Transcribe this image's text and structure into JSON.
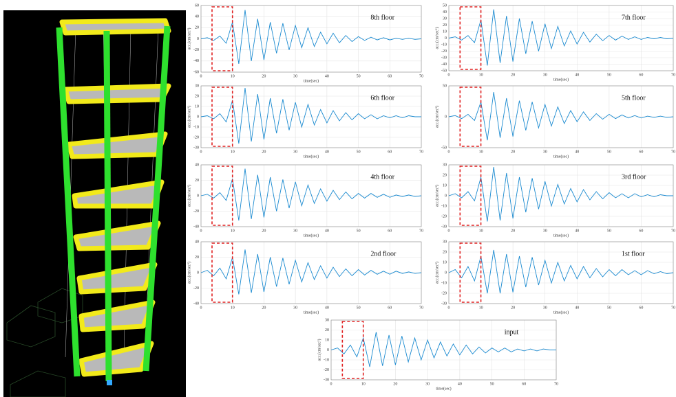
{
  "chart_data": [
    {
      "type": "line",
      "title": "8th floor",
      "xlabel": "time(sec)",
      "ylabel": "acc.(cm/sec²)",
      "color": "#1a8ad0",
      "x": [
        0,
        2,
        4,
        6,
        8,
        10,
        12,
        14,
        16,
        18,
        20,
        22,
        24,
        26,
        28,
        30,
        32,
        34,
        36,
        38,
        40,
        42,
        44,
        46,
        48,
        50,
        52,
        54,
        56,
        58,
        60,
        62,
        64,
        66,
        68,
        70
      ],
      "values": [
        0,
        2,
        -3,
        5,
        -8,
        30,
        -45,
        52,
        -40,
        36,
        -38,
        30,
        -26,
        28,
        -20,
        24,
        -16,
        20,
        -14,
        12,
        -9,
        10,
        -7,
        6,
        -5,
        4,
        -3,
        3,
        -2,
        2,
        -2,
        1,
        -1,
        1,
        -1,
        0
      ],
      "xlim": [
        0,
        70
      ],
      "xticks": [
        0,
        10,
        20,
        30,
        40,
        50,
        60,
        70
      ],
      "ylim": [
        -60,
        60
      ],
      "yticks": [
        -60,
        -40,
        -20,
        0,
        20,
        40,
        60
      ],
      "highlight_xlim": [
        3.5,
        10
      ],
      "grid": true
    },
    {
      "type": "line",
      "title": "7th floor",
      "xlabel": "time(sec)",
      "ylabel": "acc.(cm/sec²)",
      "color": "#1a8ad0",
      "x": [
        0,
        2,
        4,
        6,
        8,
        10,
        12,
        14,
        16,
        18,
        20,
        22,
        24,
        26,
        28,
        30,
        32,
        34,
        36,
        38,
        40,
        42,
        44,
        46,
        48,
        50,
        52,
        54,
        56,
        58,
        60,
        62,
        64,
        66,
        68,
        70
      ],
      "values": [
        0,
        2,
        -3,
        4,
        -7,
        28,
        -42,
        44,
        -38,
        34,
        -36,
        30,
        -24,
        26,
        -20,
        22,
        -16,
        18,
        -12,
        11,
        -9,
        9,
        -6,
        6,
        -4,
        4,
        -3,
        3,
        -2,
        2,
        -2,
        1,
        -1,
        1,
        -1,
        0
      ],
      "xlim": [
        0,
        70
      ],
      "xticks": [
        0,
        10,
        20,
        30,
        40,
        50,
        60,
        70
      ],
      "ylim": [
        -50,
        50
      ],
      "yticks": [
        -50,
        -40,
        -30,
        -20,
        -10,
        0,
        10,
        20,
        30,
        40,
        50
      ],
      "highlight_xlim": [
        3.5,
        10
      ],
      "grid": true
    },
    {
      "type": "line",
      "title": "6th floor",
      "xlabel": "time(sec)",
      "ylabel": "acc.(cm/sec²)",
      "color": "#1a8ad0",
      "x": [
        0,
        2,
        4,
        6,
        8,
        10,
        12,
        14,
        16,
        18,
        20,
        22,
        24,
        26,
        28,
        30,
        32,
        34,
        36,
        38,
        40,
        42,
        44,
        46,
        48,
        50,
        52,
        54,
        56,
        58,
        60,
        62,
        64,
        66,
        68,
        70
      ],
      "values": [
        0,
        1,
        -2,
        3,
        -5,
        16,
        -26,
        28,
        -24,
        22,
        -22,
        18,
        -16,
        17,
        -13,
        14,
        -10,
        12,
        -8,
        7,
        -6,
        6,
        -4,
        4,
        -3,
        3,
        -2,
        2,
        -2,
        1,
        -1,
        1,
        -1,
        1,
        0,
        0
      ],
      "xlim": [
        0,
        70
      ],
      "xticks": [
        0,
        10,
        20,
        30,
        40,
        50,
        60,
        70
      ],
      "ylim": [
        -30,
        30
      ],
      "yticks": [
        -30,
        -20,
        -10,
        0,
        10,
        20,
        30
      ],
      "highlight_xlim": [
        3.5,
        10
      ],
      "grid": true
    },
    {
      "type": "line",
      "title": "5th floor",
      "xlabel": "time(sec)",
      "ylabel": "acc.(cm/sec²)",
      "color": "#1a8ad0",
      "x": [
        0,
        2,
        4,
        6,
        8,
        10,
        12,
        14,
        16,
        18,
        20,
        22,
        24,
        26,
        28,
        30,
        32,
        34,
        36,
        38,
        40,
        42,
        44,
        46,
        48,
        50,
        52,
        54,
        56,
        58,
        60,
        62,
        64,
        66,
        68,
        70
      ],
      "values": [
        0,
        2,
        -3,
        4,
        -6,
        24,
        -38,
        40,
        -34,
        30,
        -32,
        26,
        -22,
        24,
        -18,
        20,
        -15,
        16,
        -11,
        10,
        -8,
        8,
        -6,
        5,
        -4,
        4,
        -3,
        3,
        -2,
        2,
        -2,
        1,
        -1,
        1,
        -1,
        0
      ],
      "xlim": [
        0,
        70
      ],
      "xticks": [
        0,
        10,
        20,
        30,
        40,
        50,
        60,
        70
      ],
      "ylim": [
        -50,
        50
      ],
      "yticks": [
        -50,
        0,
        50
      ],
      "highlight_xlim": [
        3.5,
        10
      ],
      "grid": true
    },
    {
      "type": "line",
      "title": "4th floor",
      "xlabel": "time(sec)",
      "ylabel": "acc.(cm/sec²)",
      "color": "#1a8ad0",
      "x": [
        0,
        2,
        4,
        6,
        8,
        10,
        12,
        14,
        16,
        18,
        20,
        22,
        24,
        26,
        28,
        30,
        32,
        34,
        36,
        38,
        40,
        42,
        44,
        46,
        48,
        50,
        52,
        54,
        56,
        58,
        60,
        62,
        64,
        66,
        68,
        70
      ],
      "values": [
        0,
        2,
        -3,
        4,
        -6,
        22,
        -32,
        35,
        -30,
        27,
        -28,
        24,
        -20,
        21,
        -16,
        18,
        -13,
        14,
        -10,
        9,
        -7,
        7,
        -5,
        5,
        -4,
        3,
        -3,
        3,
        -2,
        2,
        -2,
        1,
        -1,
        1,
        -1,
        0
      ],
      "xlim": [
        0,
        70
      ],
      "xticks": [
        0,
        10,
        20,
        30,
        40,
        50,
        60,
        70
      ],
      "ylim": [
        -40,
        40
      ],
      "yticks": [
        -40,
        -20,
        0,
        20,
        40
      ],
      "highlight_xlim": [
        3.5,
        10
      ],
      "grid": true
    },
    {
      "type": "line",
      "title": "3rd floor",
      "xlabel": "time(sec)",
      "ylabel": "acc.(cm/sec²)",
      "color": "#1a8ad0",
      "x": [
        0,
        2,
        4,
        6,
        8,
        10,
        12,
        14,
        16,
        18,
        20,
        22,
        24,
        26,
        28,
        30,
        32,
        34,
        36,
        38,
        40,
        42,
        44,
        46,
        48,
        50,
        52,
        54,
        56,
        58,
        60,
        62,
        64,
        66,
        68,
        70
      ],
      "values": [
        0,
        2,
        -2,
        4,
        -5,
        18,
        -25,
        28,
        -24,
        22,
        -22,
        18,
        -16,
        17,
        -13,
        14,
        -10,
        11,
        -8,
        7,
        -6,
        6,
        -4,
        4,
        -3,
        3,
        -2,
        2,
        -2,
        2,
        -1,
        1,
        -1,
        1,
        0,
        0
      ],
      "xlim": [
        0,
        70
      ],
      "xticks": [
        0,
        10,
        20,
        30,
        40,
        50,
        60,
        70
      ],
      "ylim": [
        -30,
        30
      ],
      "yticks": [
        -30,
        -20,
        -10,
        0,
        10,
        20,
        30
      ],
      "highlight_xlim": [
        3.5,
        10
      ],
      "grid": true
    },
    {
      "type": "line",
      "title": "2nd floor",
      "xlabel": "time(sec)",
      "ylabel": "acc.(cm/sec²)",
      "color": "#1a8ad0",
      "x": [
        0,
        2,
        4,
        6,
        8,
        10,
        12,
        14,
        16,
        18,
        20,
        22,
        24,
        26,
        28,
        30,
        32,
        34,
        36,
        38,
        40,
        42,
        44,
        46,
        48,
        50,
        52,
        54,
        56,
        58,
        60,
        62,
        64,
        66,
        68,
        70
      ],
      "values": [
        0,
        3,
        -4,
        6,
        -8,
        20,
        -28,
        30,
        -26,
        24,
        -25,
        20,
        -18,
        19,
        -15,
        16,
        -12,
        13,
        -9,
        9,
        -7,
        7,
        -5,
        5,
        -4,
        4,
        -3,
        3,
        -2,
        2,
        -2,
        2,
        -1,
        1,
        -1,
        0
      ],
      "xlim": [
        0,
        70
      ],
      "xticks": [
        0,
        10,
        20,
        30,
        40,
        50,
        60,
        70
      ],
      "ylim": [
        -40,
        40
      ],
      "yticks": [
        -40,
        -20,
        0,
        20,
        40
      ],
      "highlight_xlim": [
        3.5,
        10
      ],
      "grid": true
    },
    {
      "type": "line",
      "title": "1st floor",
      "xlabel": "time(sec)",
      "ylabel": "acc.(cm/sec²)",
      "color": "#1a8ad0",
      "x": [
        0,
        2,
        4,
        6,
        8,
        10,
        12,
        14,
        16,
        18,
        20,
        22,
        24,
        26,
        28,
        30,
        32,
        34,
        36,
        38,
        40,
        42,
        44,
        46,
        48,
        50,
        52,
        54,
        56,
        58,
        60,
        62,
        64,
        66,
        68,
        70
      ],
      "values": [
        0,
        3,
        -5,
        6,
        -8,
        16,
        -20,
        22,
        -20,
        18,
        -19,
        16,
        -14,
        15,
        -12,
        12,
        -10,
        10,
        -8,
        7,
        -6,
        6,
        -5,
        4,
        -4,
        3,
        -3,
        3,
        -2,
        2,
        -2,
        2,
        -1,
        1,
        -1,
        0
      ],
      "xlim": [
        0,
        70
      ],
      "xticks": [
        0,
        10,
        20,
        30,
        40,
        50,
        60,
        70
      ],
      "ylim": [
        -30,
        30
      ],
      "yticks": [
        -30,
        -20,
        -10,
        0,
        10,
        20,
        30
      ],
      "highlight_xlim": [
        3.5,
        10
      ],
      "grid": true
    },
    {
      "type": "line",
      "title": "input",
      "xlabel": "time(sec)",
      "ylabel": "acc.(cm/sec²)",
      "color": "#1a8ad0",
      "x": [
        0,
        2,
        4,
        6,
        8,
        10,
        12,
        14,
        16,
        18,
        20,
        22,
        24,
        26,
        28,
        30,
        32,
        34,
        36,
        38,
        40,
        42,
        44,
        46,
        48,
        50,
        52,
        54,
        56,
        58,
        60,
        62,
        64,
        66,
        68,
        70
      ],
      "values": [
        0,
        2,
        -4,
        5,
        -7,
        12,
        -17,
        18,
        -16,
        15,
        -15,
        14,
        -12,
        12,
        -10,
        10,
        -8,
        8,
        -6,
        6,
        -5,
        5,
        -4,
        3,
        -3,
        2,
        -2,
        2,
        -2,
        1,
        -1,
        1,
        -1,
        1,
        0,
        0
      ],
      "xlim": [
        0,
        70
      ],
      "xticks": [
        0,
        10,
        20,
        30,
        40,
        50,
        60,
        70
      ],
      "ylim": [
        -30,
        30
      ],
      "yticks": [
        -30,
        -20,
        -10,
        0,
        10,
        20,
        30
      ],
      "highlight_xlim": [
        3.5,
        10
      ],
      "grid": true
    }
  ]
}
